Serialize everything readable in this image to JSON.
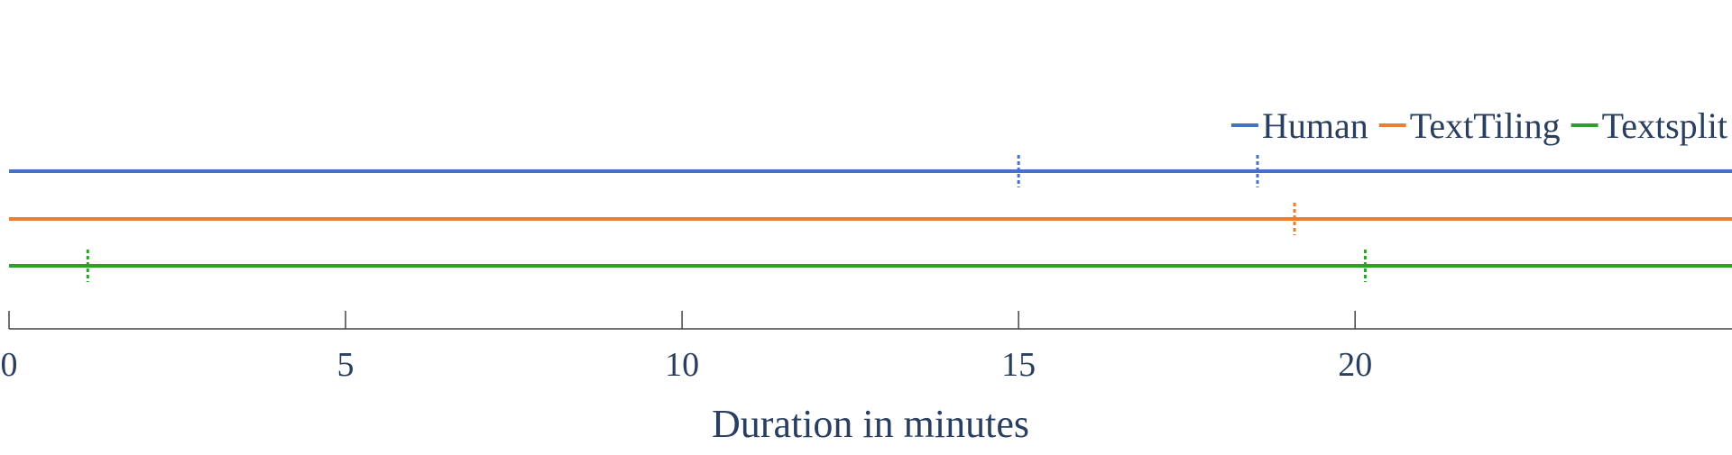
{
  "chart_data": {
    "type": "timeline",
    "title": "",
    "xlabel": "Duration in minutes",
    "ylabel": "",
    "xlim": [
      0,
      25.6
    ],
    "x_ticks": [
      0,
      5,
      10,
      15,
      20
    ],
    "legend_position": "top-right",
    "grid": false,
    "colors": {
      "text": "#2a3f5f",
      "axis": "#444444"
    },
    "series": [
      {
        "name": "Human",
        "color": "#4472c4",
        "breakpoints": [
          15.0,
          18.55
        ]
      },
      {
        "name": "TextTiling",
        "color": "#ed7d31",
        "breakpoints": [
          19.1
        ]
      },
      {
        "name": "Textsplit",
        "color": "#2ca02c",
        "breakpoints": [
          1.17,
          20.15
        ]
      }
    ]
  }
}
